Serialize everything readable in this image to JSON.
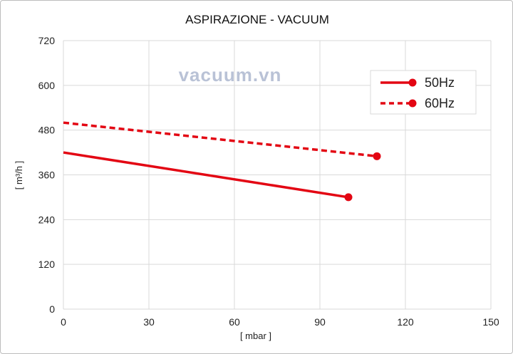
{
  "chart_data": {
    "type": "line",
    "title": "ASPIRAZIONE - VACUUM",
    "xlabel": "[ mbar ]",
    "ylabel": "[ m³/h ]",
    "xlim": [
      0,
      150
    ],
    "ylim": [
      0,
      720
    ],
    "x_ticks": [
      "0",
      "30",
      "60",
      "90",
      "120",
      "150"
    ],
    "y_ticks": [
      "0",
      "120",
      "240",
      "360",
      "480",
      "600",
      "720"
    ],
    "grid": true,
    "legend_position": "top-right",
    "series": [
      {
        "name": "50Hz",
        "style": "solid",
        "color": "#e30613",
        "x": [
          0,
          100
        ],
        "y": [
          420,
          300
        ]
      },
      {
        "name": "60Hz",
        "style": "dashed",
        "color": "#e30613",
        "x": [
          0,
          110
        ],
        "y": [
          500,
          410
        ]
      }
    ]
  },
  "watermark": "vacuum.vn"
}
